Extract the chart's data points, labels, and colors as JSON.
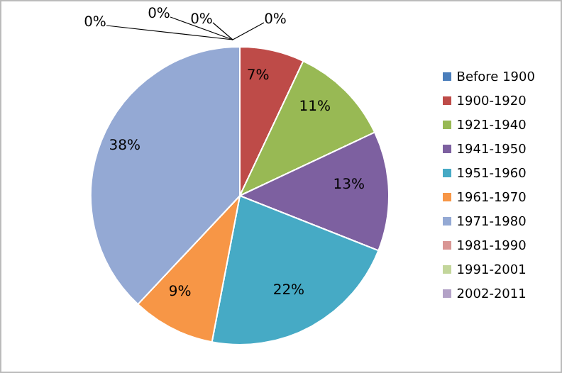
{
  "chart_data": {
    "type": "pie",
    "categories": [
      "Before 1900",
      "1900-1920",
      "1921-1940",
      "1941-1950",
      "1951-1960",
      "1961-1970",
      "1971-1980",
      "1981-1990",
      "1991-2001",
      "2002-2011"
    ],
    "values": [
      0,
      7,
      11,
      13,
      22,
      9,
      38,
      0,
      0,
      0
    ],
    "colors": [
      "#4a7ebb",
      "#be4b48",
      "#98b954",
      "#7d60a0",
      "#46aac5",
      "#f79646",
      "#94a9d4",
      "#d99694",
      "#c3d69b",
      "#b3a2c7"
    ],
    "value_labels": [
      "0%",
      "7%",
      "11%",
      "13%",
      "22%",
      "9%",
      "38%",
      "0%",
      "0%",
      "0%"
    ],
    "legend": "right"
  }
}
